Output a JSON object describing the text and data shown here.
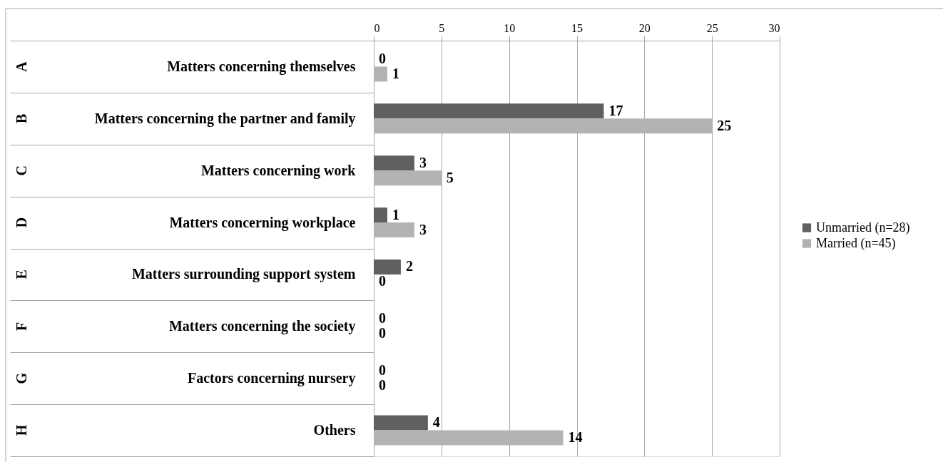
{
  "chart_data": {
    "type": "bar",
    "orientation": "horizontal",
    "categories": [
      "Matters concerning themselves",
      "Matters concerning the partner and family",
      "Matters concerning work",
      "Matters concerning workplace",
      "Matters surrounding support system",
      "Matters concerning the society",
      "Factors concerning nursery",
      "Others"
    ],
    "y2_categories": [
      "A",
      "B",
      "C",
      "D",
      "E",
      "F",
      "G",
      "H"
    ],
    "series": [
      {
        "name": "Unmarried (n=28)",
        "color": "#606060",
        "values": [
          0,
          17,
          3,
          1,
          2,
          0,
          0,
          4
        ]
      },
      {
        "name": "Married (n=45)",
        "color": "#b3b3b3",
        "values": [
          1,
          25,
          5,
          3,
          0,
          0,
          0,
          14
        ]
      }
    ],
    "xlim": [
      0,
      30
    ],
    "xticks": [
      0,
      5,
      10,
      15,
      20,
      25,
      30
    ],
    "grid": "x",
    "legend": "right",
    "data_labels": true
  }
}
